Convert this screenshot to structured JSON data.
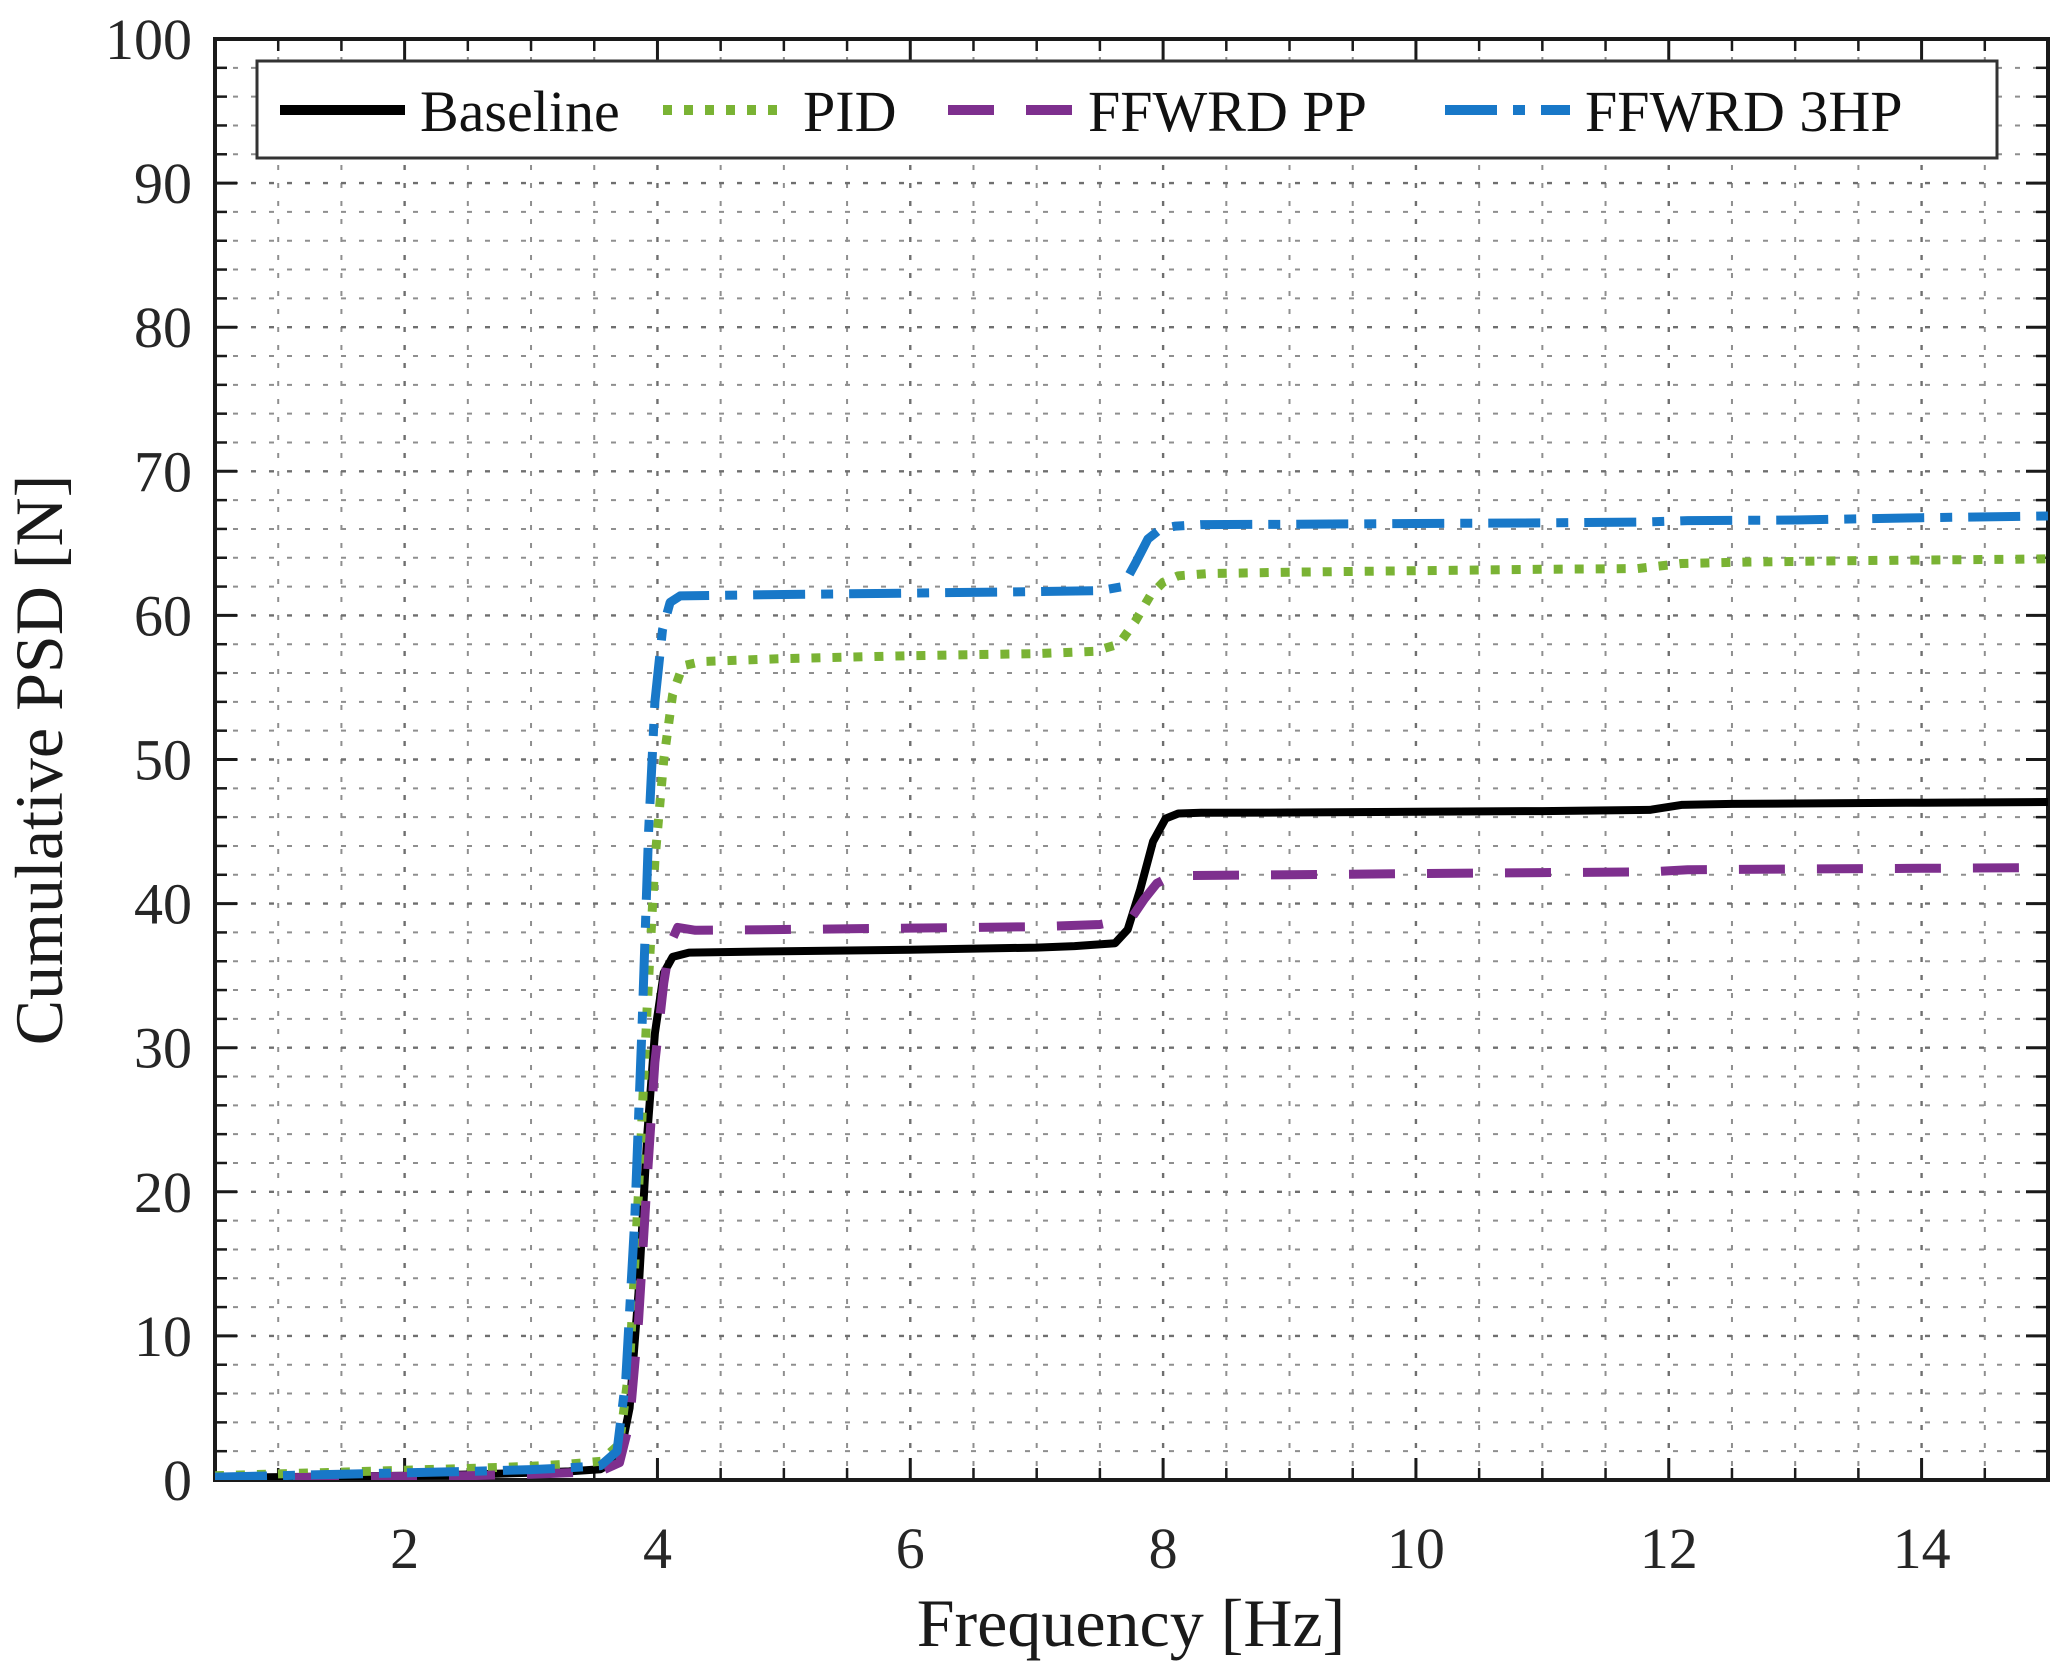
{
  "figure": {
    "background": "#ffffff",
    "frame_color": "#1a1a1a",
    "grid_major_color": "#6f6f6f",
    "grid_minor_color": "#8f8f8f",
    "tick_color": "#1a1a1a",
    "text_color": "#262626"
  },
  "legend": {
    "position": "top-inside-horizontal",
    "border_color": "#333333",
    "background": "#ffffff",
    "entries": [
      {
        "label": "Baseline",
        "color": "#000000",
        "style": "solid"
      },
      {
        "label": "PID",
        "color": "#7AB334",
        "style": "dotted"
      },
      {
        "label": "FFWRD PP",
        "color": "#7E2F8E",
        "style": "dashed"
      },
      {
        "label": "FFWRD 3HP",
        "color": "#1878C8",
        "style": "dashdot"
      }
    ]
  },
  "chart_data": {
    "type": "line",
    "title": "",
    "xlabel": "Frequency [Hz]",
    "ylabel": "Cumulative PSD [N]",
    "xlim": [
      0.5,
      15
    ],
    "ylim": [
      0,
      100
    ],
    "x_major_ticks": [
      2,
      4,
      6,
      8,
      10,
      12,
      14
    ],
    "x_tick_labels": [
      "2",
      "4",
      "6",
      "8",
      "10",
      "12",
      "14"
    ],
    "x_minor_step": 0.5,
    "y_major_ticks": [
      0,
      10,
      20,
      30,
      40,
      50,
      60,
      70,
      80,
      90,
      100
    ],
    "y_tick_labels": [
      "0",
      "10",
      "20",
      "30",
      "40",
      "50",
      "60",
      "70",
      "80",
      "90",
      "100"
    ],
    "y_minor_step": 2,
    "grid": "dotted-major-and-minor",
    "legend_position": "north-inside",
    "series": [
      {
        "name": "Baseline",
        "color": "#000000",
        "style": "solid",
        "width": 8,
        "points": [
          [
            0.5,
            0.15
          ],
          [
            1.0,
            0.2
          ],
          [
            1.5,
            0.25
          ],
          [
            2.0,
            0.3
          ],
          [
            2.5,
            0.38
          ],
          [
            3.0,
            0.5
          ],
          [
            3.3,
            0.6
          ],
          [
            3.55,
            0.75
          ],
          [
            3.7,
            1.5
          ],
          [
            3.78,
            5
          ],
          [
            3.85,
            13
          ],
          [
            3.92,
            24
          ],
          [
            3.98,
            31
          ],
          [
            4.05,
            35.2
          ],
          [
            4.12,
            36.3
          ],
          [
            4.25,
            36.6
          ],
          [
            5.0,
            36.7
          ],
          [
            6.0,
            36.8
          ],
          [
            7.0,
            36.95
          ],
          [
            7.3,
            37.05
          ],
          [
            7.62,
            37.25
          ],
          [
            7.72,
            38.2
          ],
          [
            7.82,
            41.0
          ],
          [
            7.92,
            44.3
          ],
          [
            8.02,
            45.9
          ],
          [
            8.12,
            46.25
          ],
          [
            8.3,
            46.3
          ],
          [
            9.0,
            46.32
          ],
          [
            10.0,
            46.38
          ],
          [
            11.0,
            46.42
          ],
          [
            11.85,
            46.5
          ],
          [
            12.1,
            46.85
          ],
          [
            12.5,
            46.92
          ],
          [
            13.0,
            46.95
          ],
          [
            14.0,
            47.0
          ],
          [
            15.0,
            47.05
          ]
        ]
      },
      {
        "name": "PID",
        "color": "#7AB334",
        "style": "dotted",
        "width": 9,
        "points": [
          [
            0.5,
            0.3
          ],
          [
            1.0,
            0.42
          ],
          [
            1.5,
            0.55
          ],
          [
            2.0,
            0.68
          ],
          [
            2.5,
            0.8
          ],
          [
            3.0,
            0.95
          ],
          [
            3.3,
            1.1
          ],
          [
            3.55,
            1.3
          ],
          [
            3.7,
            2.5
          ],
          [
            3.78,
            8
          ],
          [
            3.85,
            20
          ],
          [
            3.92,
            33
          ],
          [
            3.98,
            43
          ],
          [
            4.05,
            50
          ],
          [
            4.12,
            54.5
          ],
          [
            4.2,
            56.5
          ],
          [
            4.35,
            56.8
          ],
          [
            5.0,
            57.0
          ],
          [
            6.0,
            57.2
          ],
          [
            7.0,
            57.35
          ],
          [
            7.45,
            57.5
          ],
          [
            7.65,
            58.0
          ],
          [
            7.78,
            59.6
          ],
          [
            7.9,
            61.4
          ],
          [
            8.0,
            62.3
          ],
          [
            8.12,
            62.75
          ],
          [
            8.35,
            62.9
          ],
          [
            9.0,
            63.0
          ],
          [
            10.0,
            63.1
          ],
          [
            11.0,
            63.2
          ],
          [
            11.75,
            63.25
          ],
          [
            12.1,
            63.6
          ],
          [
            12.6,
            63.7
          ],
          [
            13.5,
            63.8
          ],
          [
            14.5,
            63.88
          ],
          [
            15.0,
            63.92
          ]
        ]
      },
      {
        "name": "FFWRD PP",
        "color": "#7E2F8E",
        "style": "dashed",
        "width": 9,
        "points": [
          [
            0.5,
            0.1
          ],
          [
            1.0,
            0.15
          ],
          [
            1.5,
            0.2
          ],
          [
            2.0,
            0.25
          ],
          [
            2.5,
            0.3
          ],
          [
            3.0,
            0.4
          ],
          [
            3.3,
            0.5
          ],
          [
            3.55,
            0.62
          ],
          [
            3.7,
            1.2
          ],
          [
            3.78,
            4
          ],
          [
            3.85,
            11
          ],
          [
            3.92,
            21
          ],
          [
            3.98,
            29
          ],
          [
            4.05,
            34.5
          ],
          [
            4.1,
            37.2
          ],
          [
            4.16,
            38.35
          ],
          [
            4.3,
            38.15
          ],
          [
            5.0,
            38.2
          ],
          [
            6.0,
            38.3
          ],
          [
            7.0,
            38.4
          ],
          [
            7.5,
            38.55
          ],
          [
            7.75,
            39.0
          ],
          [
            7.85,
            40.3
          ],
          [
            7.95,
            41.4
          ],
          [
            8.05,
            41.85
          ],
          [
            8.2,
            41.95
          ],
          [
            9.0,
            42.0
          ],
          [
            10.0,
            42.08
          ],
          [
            11.0,
            42.15
          ],
          [
            11.85,
            42.2
          ],
          [
            12.15,
            42.35
          ],
          [
            13.0,
            42.4
          ],
          [
            14.0,
            42.45
          ],
          [
            15.0,
            42.5
          ]
        ]
      },
      {
        "name": "FFWRD 3HP",
        "color": "#1878C8",
        "style": "dashdot",
        "width": 9,
        "points": [
          [
            0.5,
            0.2
          ],
          [
            1.0,
            0.3
          ],
          [
            1.5,
            0.4
          ],
          [
            2.0,
            0.5
          ],
          [
            2.5,
            0.6
          ],
          [
            3.0,
            0.72
          ],
          [
            3.3,
            0.85
          ],
          [
            3.55,
            1.0
          ],
          [
            3.68,
            2.0
          ],
          [
            3.75,
            7
          ],
          [
            3.82,
            18
          ],
          [
            3.88,
            32
          ],
          [
            3.93,
            45
          ],
          [
            3.98,
            54
          ],
          [
            4.04,
            59
          ],
          [
            4.1,
            60.9
          ],
          [
            4.18,
            61.35
          ],
          [
            5.0,
            61.45
          ],
          [
            6.0,
            61.55
          ],
          [
            7.0,
            61.65
          ],
          [
            7.5,
            61.72
          ],
          [
            7.68,
            62.0
          ],
          [
            7.78,
            63.6
          ],
          [
            7.88,
            65.3
          ],
          [
            7.98,
            66.0
          ],
          [
            8.1,
            66.2
          ],
          [
            8.3,
            66.3
          ],
          [
            9.0,
            66.32
          ],
          [
            10.0,
            66.38
          ],
          [
            11.0,
            66.42
          ],
          [
            11.8,
            66.48
          ],
          [
            12.15,
            66.58
          ],
          [
            13.0,
            66.62
          ],
          [
            14.0,
            66.78
          ],
          [
            15.0,
            66.9
          ]
        ]
      }
    ]
  }
}
